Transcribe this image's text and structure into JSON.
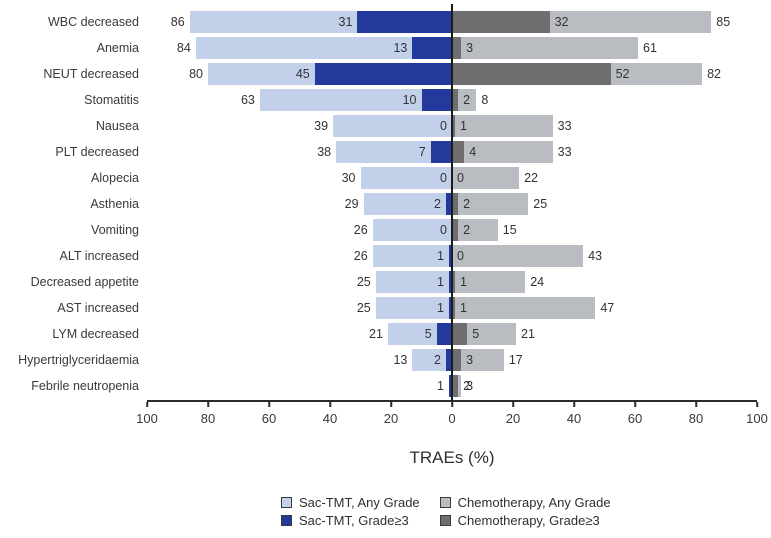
{
  "chart_data": {
    "type": "bar",
    "variant": "diverging-horizontal-tornado",
    "title": "",
    "xlabel": "TRAEs (%)",
    "x_axis": {
      "tick_labels": [
        "100",
        "80",
        "60",
        "40",
        "20",
        "0",
        "20",
        "40",
        "60",
        "80",
        "100"
      ],
      "left_max": 100,
      "right_max": 100,
      "units_total": 200
    },
    "colors": {
      "sac_any": "#c3d0ea",
      "sac_g3": "#233a9c",
      "chemo_any": "#b9bdc1",
      "chemo_g3": "#6e6e70",
      "axis": "#2b2b2b",
      "zero_line": "#1c1c1c"
    },
    "legend": [
      {
        "key": "sac_any",
        "label": "Sac-TMT, Any Grade"
      },
      {
        "key": "chemo_any",
        "label": "Chemotherapy, Any Grade"
      },
      {
        "key": "sac_g3",
        "label": "Sac-TMT, Grade≥3"
      },
      {
        "key": "chemo_g3",
        "label": "Chemotherapy, Grade≥3"
      }
    ],
    "rows": [
      {
        "label": "WBC decreased",
        "sac_any": 86,
        "sac_g3": 31,
        "chemo_g3": 32,
        "chemo_any": 85,
        "labels": {
          "sac_any": "86",
          "sac_g3": "31",
          "chemo_g3": "32",
          "chemo_any": "85"
        }
      },
      {
        "label": "Anemia",
        "sac_any": 84,
        "sac_g3": 13,
        "chemo_g3": 3,
        "chemo_any": 61,
        "labels": {
          "sac_any": "84",
          "sac_g3": "13",
          "chemo_g3": "3",
          "chemo_any": "61"
        }
      },
      {
        "label": "NEUT decreased",
        "sac_any": 80,
        "sac_g3": 45,
        "chemo_g3": 52,
        "chemo_any": 82,
        "labels": {
          "sac_any": "80",
          "sac_g3": "45",
          "chemo_g3": "52",
          "chemo_any": "82"
        }
      },
      {
        "label": "Stomatitis",
        "sac_any": 63,
        "sac_g3": 10,
        "chemo_g3": 2,
        "chemo_any": 8,
        "labels": {
          "sac_any": "63",
          "sac_g3": "10",
          "chemo_g3": "2",
          "chemo_any": "8"
        }
      },
      {
        "label": "Nausea",
        "sac_any": 39,
        "sac_g3": 0,
        "chemo_g3": 1,
        "chemo_any": 33,
        "labels": {
          "sac_any": "39",
          "sac_g3": "0",
          "chemo_g3": "1",
          "chemo_any": "33"
        }
      },
      {
        "label": "PLT decreased",
        "sac_any": 38,
        "sac_g3": 7,
        "chemo_g3": 4,
        "chemo_any": 33,
        "labels": {
          "sac_any": "38",
          "sac_g3": "7",
          "chemo_g3": "4",
          "chemo_any": "33"
        }
      },
      {
        "label": "Alopecia",
        "sac_any": 30,
        "sac_g3": 0,
        "chemo_g3": 0,
        "chemo_any": 22,
        "labels": {
          "sac_any": "30",
          "sac_g3": "0",
          "chemo_g3": "0",
          "chemo_any": "22"
        }
      },
      {
        "label": "Asthenia",
        "sac_any": 29,
        "sac_g3": 2,
        "chemo_g3": 2,
        "chemo_any": 25,
        "labels": {
          "sac_any": "29",
          "sac_g3": "2",
          "chemo_g3": "2",
          "chemo_any": "25"
        }
      },
      {
        "label": "Vomiting",
        "sac_any": 26,
        "sac_g3": 0,
        "chemo_g3": 2,
        "chemo_any": 15,
        "labels": {
          "sac_any": "26",
          "sac_g3": "0",
          "chemo_g3": "2",
          "chemo_any": "15"
        }
      },
      {
        "label": "ALT increased",
        "sac_any": 26,
        "sac_g3": 1,
        "chemo_g3": 0,
        "chemo_any": 43,
        "labels": {
          "sac_any": "26",
          "sac_g3": "1",
          "chemo_g3": "0",
          "chemo_any": "43"
        }
      },
      {
        "label": "Decreased appetite",
        "sac_any": 25,
        "sac_g3": 1,
        "chemo_g3": 1,
        "chemo_any": 24,
        "labels": {
          "sac_any": "25",
          "sac_g3": "1",
          "chemo_g3": "1",
          "chemo_any": "24"
        }
      },
      {
        "label": "AST increased",
        "sac_any": 25,
        "sac_g3": 1,
        "chemo_g3": 1,
        "chemo_any": 47,
        "labels": {
          "sac_any": "25",
          "sac_g3": "1",
          "chemo_g3": "1",
          "chemo_any": "47"
        }
      },
      {
        "label": "LYM decreased",
        "sac_any": 21,
        "sac_g3": 5,
        "chemo_g3": 5,
        "chemo_any": 21,
        "labels": {
          "sac_any": "21",
          "sac_g3": "5",
          "chemo_g3": "5",
          "chemo_any": "21"
        }
      },
      {
        "label": "Hypertriglyceridaemia",
        "sac_any": 13,
        "sac_g3": 2,
        "chemo_g3": 3,
        "chemo_any": 17,
        "labels": {
          "sac_any": "13",
          "sac_g3": "2",
          "chemo_g3": "3",
          "chemo_any": "17"
        }
      },
      {
        "label": "Febrile neutropenia",
        "sac_any": 1,
        "sac_g3": 1,
        "chemo_g3": 2,
        "chemo_any": 3,
        "labels": {
          "sac_any": "",
          "sac_g3": "1",
          "chemo_g3": "2",
          "chemo_any": "3"
        }
      }
    ]
  }
}
